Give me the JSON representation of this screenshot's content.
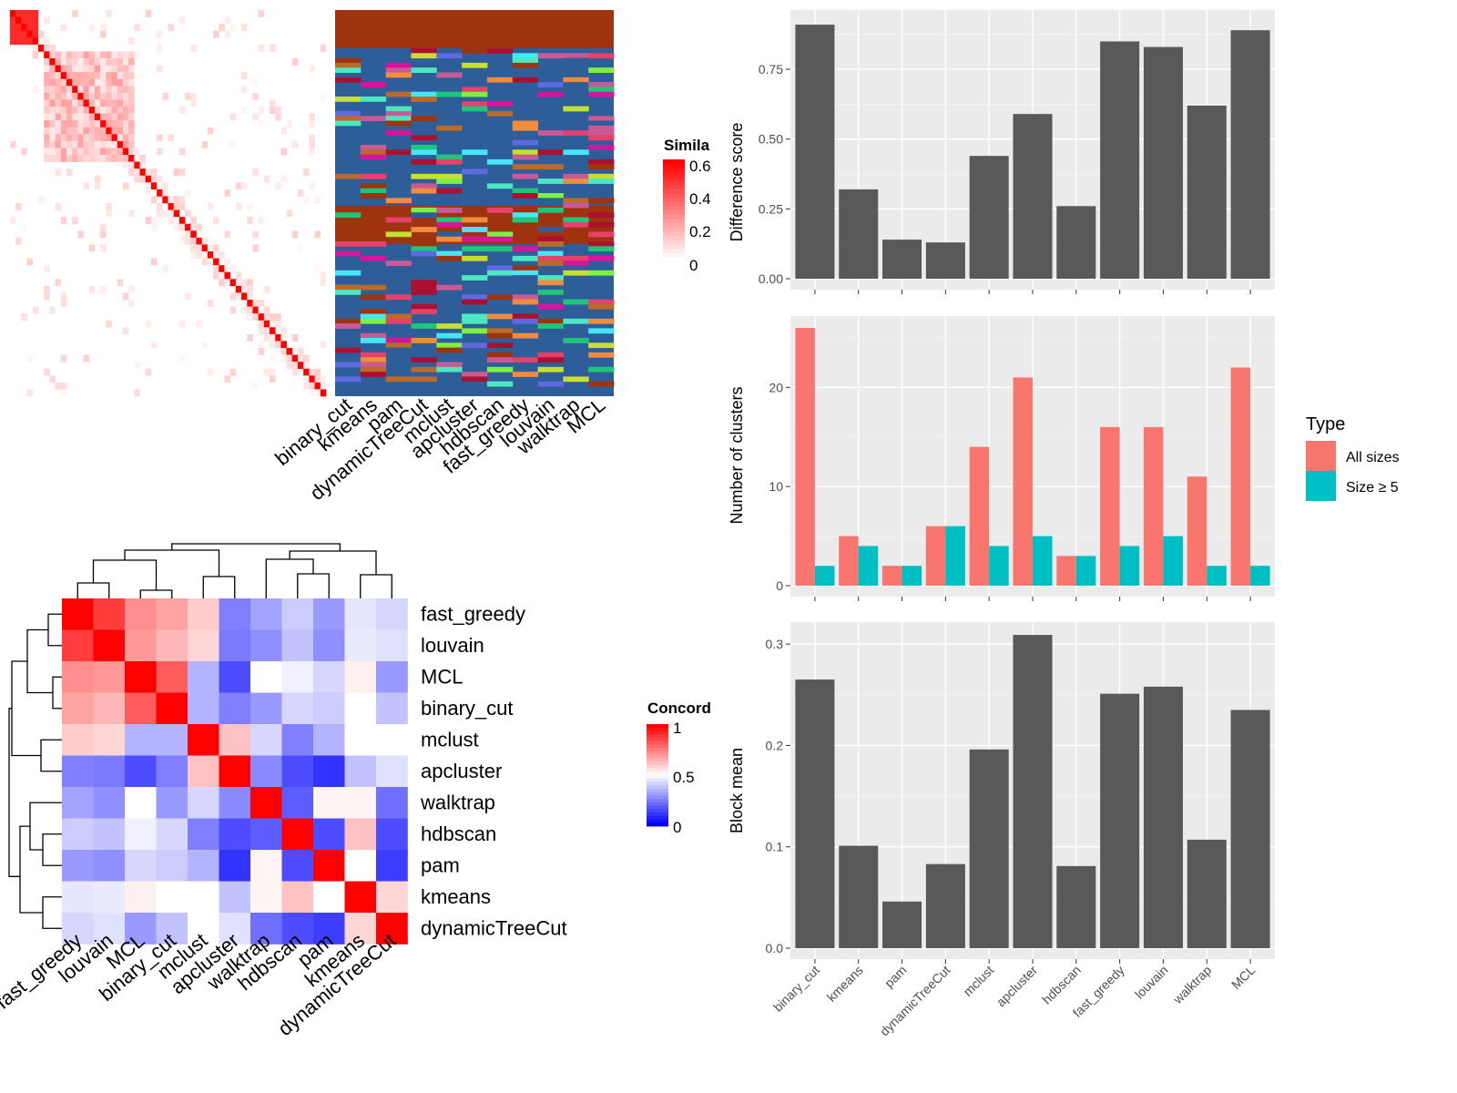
{
  "colors": {
    "panel_bg": "#ebebeb",
    "bar_fill": "#595959",
    "all_sizes": "#f8766d",
    "size5": "#00bfc4",
    "heat_high": "#ff0000",
    "heat_mid": "#ffffff",
    "heat_low": "#0000ff"
  },
  "similarity_legend": {
    "title": "Simila",
    "ticks": [
      "0.6",
      "0.4",
      "0.2",
      "0"
    ]
  },
  "concordance_legend": {
    "title": "Concord",
    "ticks": [
      "1",
      "0.5",
      "0"
    ]
  },
  "chart_data": [
    {
      "type": "heatmap",
      "name": "similarity matrix",
      "colorbar_title": "Simila",
      "colorbar_ticks": [
        0,
        0.2,
        0.4,
        0.6
      ]
    },
    {
      "type": "heatmap",
      "name": "cluster assignments",
      "columns": [
        "binary_cut",
        "kmeans",
        "pam",
        "dynamicTreeCut",
        "mclust",
        "apcluster",
        "hdbscan",
        "fast_greedy",
        "louvain",
        "walktrap",
        "MCL"
      ]
    },
    {
      "type": "heatmap",
      "name": "concordance",
      "labels": [
        "fast_greedy",
        "louvain",
        "MCL",
        "binary_cut",
        "mclust",
        "apcluster",
        "walktrap",
        "hdbscan",
        "pam",
        "kmeans",
        "dynamicTreeCut"
      ],
      "colorbar_title": "Concord",
      "colorbar_ticks": [
        0,
        0.5,
        1
      ],
      "values": [
        [
          1.0,
          0.88,
          0.72,
          0.68,
          0.6,
          0.25,
          0.32,
          0.4,
          0.3,
          0.45,
          0.42
        ],
        [
          0.88,
          1.0,
          0.7,
          0.64,
          0.58,
          0.24,
          0.28,
          0.38,
          0.28,
          0.46,
          0.44
        ],
        [
          0.72,
          0.7,
          1.0,
          0.82,
          0.35,
          0.15,
          0.5,
          0.47,
          0.42,
          0.53,
          0.3
        ],
        [
          0.68,
          0.64,
          0.82,
          1.0,
          0.35,
          0.25,
          0.3,
          0.42,
          0.4,
          0.5,
          0.38
        ],
        [
          0.6,
          0.58,
          0.35,
          0.35,
          1.0,
          0.62,
          0.42,
          0.25,
          0.35,
          0.5,
          0.5
        ],
        [
          0.25,
          0.24,
          0.15,
          0.25,
          0.62,
          1.0,
          0.27,
          0.15,
          0.1,
          0.38,
          0.44
        ],
        [
          0.32,
          0.28,
          0.5,
          0.3,
          0.42,
          0.27,
          1.0,
          0.18,
          0.52,
          0.52,
          0.22
        ],
        [
          0.4,
          0.38,
          0.47,
          0.42,
          0.25,
          0.15,
          0.18,
          1.0,
          0.15,
          0.62,
          0.15
        ],
        [
          0.3,
          0.28,
          0.42,
          0.4,
          0.35,
          0.1,
          0.52,
          0.15,
          1.0,
          0.5,
          0.12
        ],
        [
          0.45,
          0.46,
          0.53,
          0.5,
          0.5,
          0.38,
          0.52,
          0.62,
          0.5,
          1.0,
          0.58
        ],
        [
          0.42,
          0.44,
          0.3,
          0.38,
          0.5,
          0.44,
          0.22,
          0.15,
          0.12,
          0.58,
          1.0
        ]
      ]
    },
    {
      "type": "bar",
      "categories": [
        "binary_cut",
        "kmeans",
        "pam",
        "dynamicTreeCut",
        "mclust",
        "apcluster",
        "hdbscan",
        "fast_greedy",
        "louvain",
        "walktrap",
        "MCL"
      ],
      "values": [
        0.91,
        0.32,
        0.14,
        0.13,
        0.44,
        0.59,
        0.26,
        0.85,
        0.83,
        0.62,
        0.89
      ],
      "ylabel": "Difference score",
      "ylim": [
        0,
        0.92
      ],
      "yticks": [
        "0.00",
        "0.25",
        "0.50",
        "0.75"
      ]
    },
    {
      "type": "bar",
      "categories": [
        "binary_cut",
        "kmeans",
        "pam",
        "dynamicTreeCut",
        "mclust",
        "apcluster",
        "hdbscan",
        "fast_greedy",
        "louvain",
        "walktrap",
        "MCL"
      ],
      "series": [
        {
          "name": "All sizes",
          "values": [
            26,
            5,
            2,
            6,
            14,
            21,
            3,
            16,
            16,
            11,
            22
          ]
        },
        {
          "name": "Size ≥ 5",
          "values": [
            2,
            4,
            2,
            6,
            4,
            5,
            3,
            4,
            5,
            2,
            2
          ]
        }
      ],
      "ylabel": "Number of clusters",
      "ylim": [
        0,
        26
      ],
      "yticks": [
        "0",
        "10",
        "20"
      ],
      "legend": {
        "title": "Type",
        "position": "right"
      }
    },
    {
      "type": "bar",
      "categories": [
        "binary_cut",
        "kmeans",
        "pam",
        "dynamicTreeCut",
        "mclust",
        "apcluster",
        "hdbscan",
        "fast_greedy",
        "louvain",
        "walktrap",
        "MCL"
      ],
      "values": [
        0.265,
        0.101,
        0.046,
        0.083,
        0.196,
        0.309,
        0.081,
        0.251,
        0.258,
        0.107,
        0.235
      ],
      "ylabel": "Block mean",
      "ylim": [
        0,
        0.31
      ],
      "yticks": [
        "0.0",
        "0.1",
        "0.2",
        "0.3"
      ]
    }
  ]
}
